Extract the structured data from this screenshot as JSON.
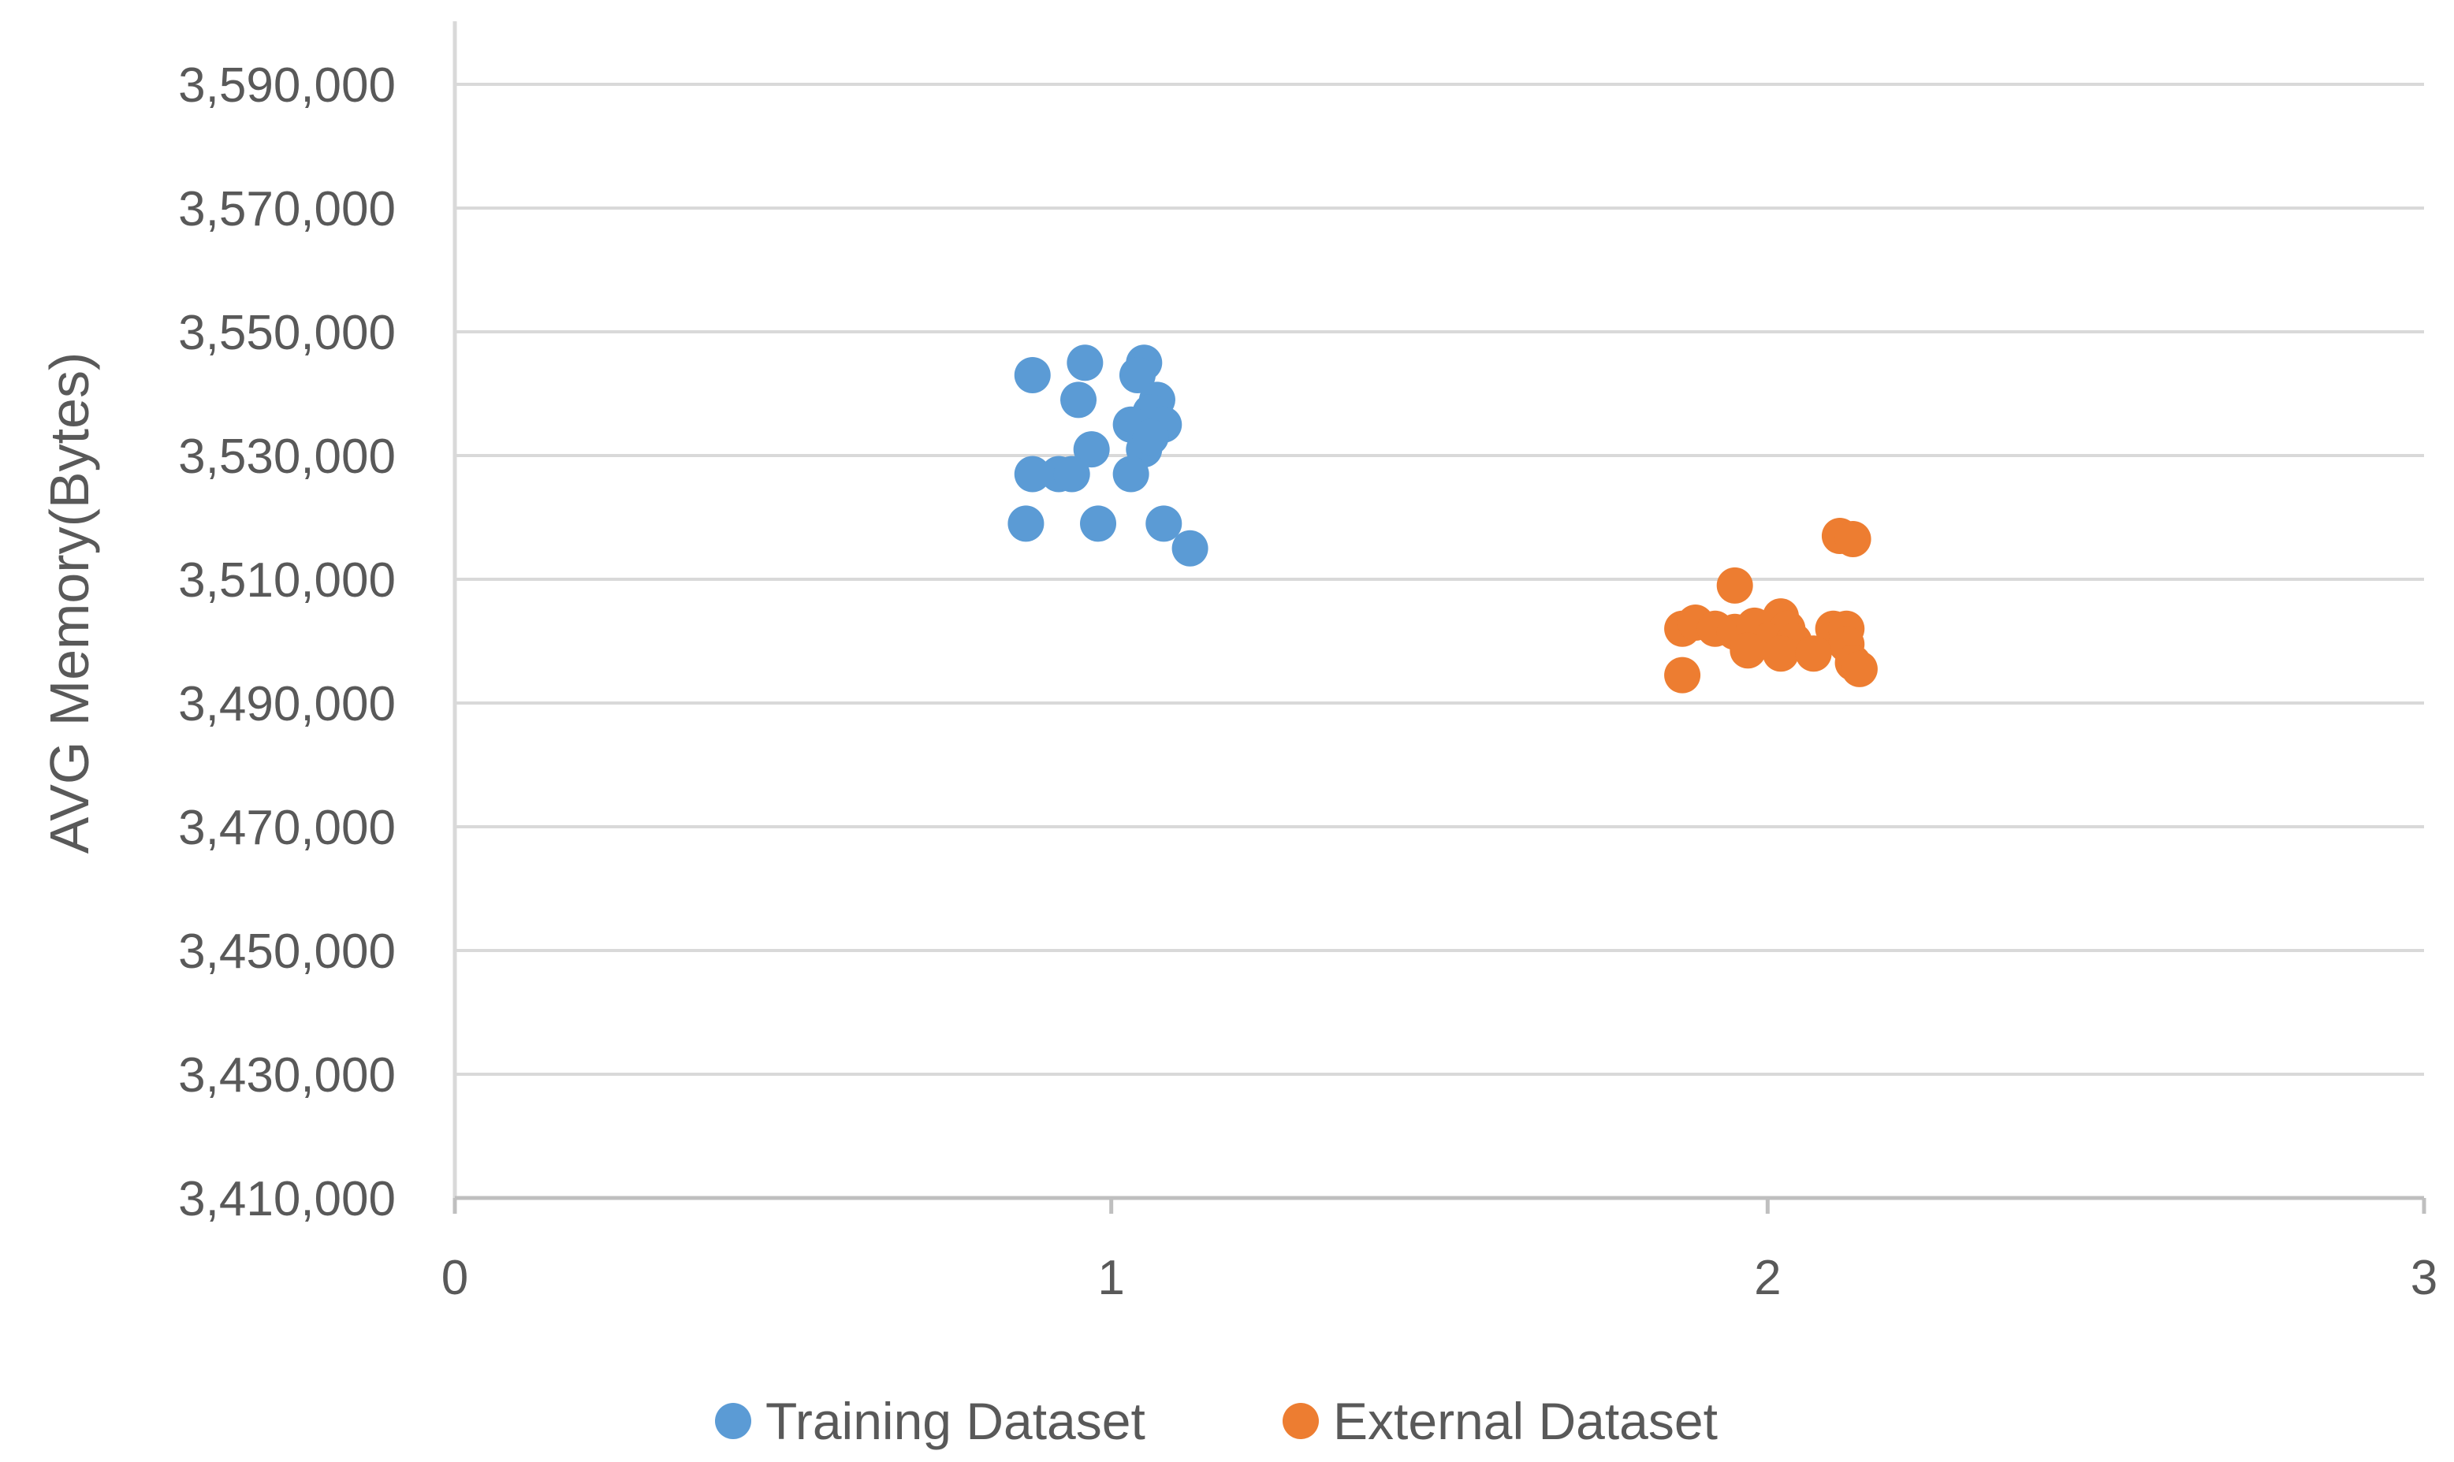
{
  "chart_data": {
    "type": "scatter",
    "title": "",
    "xlabel": "",
    "ylabel": "AVG Memory(Bytes)",
    "xlim": [
      0,
      3
    ],
    "ylim": [
      3410000,
      3590000
    ],
    "x_ticks": [
      0,
      1,
      2,
      3
    ],
    "x_tick_labels": [
      "0",
      "1",
      "2",
      "3"
    ],
    "y_ticks": [
      3410000,
      3430000,
      3450000,
      3470000,
      3490000,
      3510000,
      3530000,
      3550000,
      3570000,
      3590000
    ],
    "y_tick_labels": [
      "3,410,000",
      "3,430,000",
      "3,450,000",
      "3,470,000",
      "3,490,000",
      "3,510,000",
      "3,530,000",
      "3,550,000",
      "3,570,000",
      "3,590,000"
    ],
    "grid": true,
    "legend_position": "bottom",
    "series": [
      {
        "name": "Training Dataset",
        "color": "#5B9BD5",
        "points": [
          [
            0.88,
            3543000
          ],
          [
            0.96,
            3545000
          ],
          [
            1.05,
            3545000
          ],
          [
            1.04,
            3543000
          ],
          [
            0.95,
            3539000
          ],
          [
            1.07,
            3539000
          ],
          [
            1.06,
            3537000
          ],
          [
            1.03,
            3535000
          ],
          [
            1.08,
            3535000
          ],
          [
            0.97,
            3531000
          ],
          [
            1.05,
            3531000
          ],
          [
            1.06,
            3533000
          ],
          [
            0.88,
            3527000
          ],
          [
            0.92,
            3527000
          ],
          [
            0.94,
            3527000
          ],
          [
            1.03,
            3527000
          ],
          [
            0.87,
            3519000
          ],
          [
            0.98,
            3519000
          ],
          [
            1.08,
            3519000
          ],
          [
            1.12,
            3515000
          ]
        ]
      },
      {
        "name": "External Dataset",
        "color": "#ED7D31",
        "points": [
          [
            2.11,
            3517000
          ],
          [
            2.13,
            3516500
          ],
          [
            1.95,
            3509000
          ],
          [
            1.87,
            3502000
          ],
          [
            1.89,
            3503000
          ],
          [
            1.92,
            3502000
          ],
          [
            1.95,
            3501500
          ],
          [
            1.98,
            3502500
          ],
          [
            2.02,
            3504000
          ],
          [
            2.03,
            3502000
          ],
          [
            2.1,
            3502000
          ],
          [
            2.12,
            3502000
          ],
          [
            2.0,
            3500000
          ],
          [
            2.04,
            3500000
          ],
          [
            2.12,
            3499500
          ],
          [
            1.97,
            3498500
          ],
          [
            2.02,
            3498000
          ],
          [
            2.07,
            3498000
          ],
          [
            2.13,
            3496500
          ],
          [
            2.14,
            3495500
          ],
          [
            1.87,
            3494500
          ]
        ]
      }
    ]
  }
}
